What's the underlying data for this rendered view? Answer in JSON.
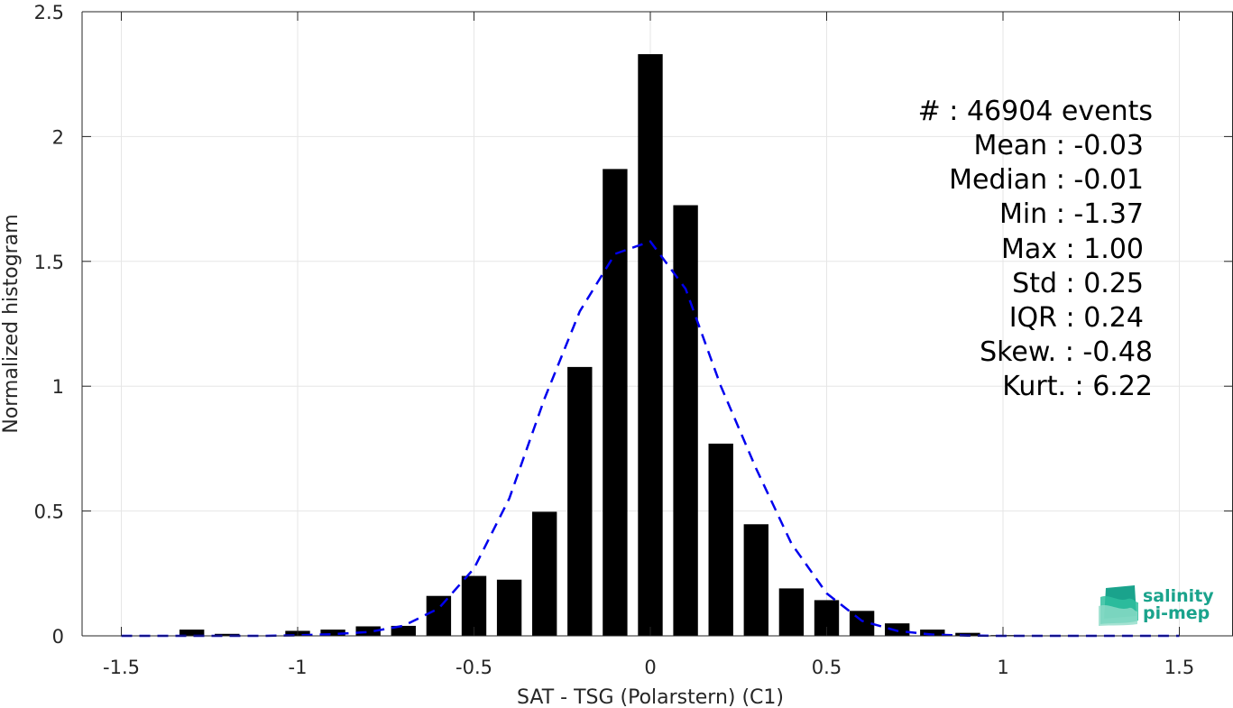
{
  "chart_data": {
    "type": "bar",
    "xlabel": "SAT - TSG (Polarstern) (C1)",
    "ylabel": "Normalized histogram",
    "xlim": [
      -1.6,
      1.6
    ],
    "ylim": [
      0,
      2.5
    ],
    "grid": true,
    "x_ticks": [
      -1.5,
      -1,
      -0.5,
      0,
      0.5,
      1,
      1.5
    ],
    "x_tick_labels": [
      "-1.5",
      "-1",
      "-0.5",
      "0",
      "0.5",
      "1",
      "1.5"
    ],
    "y_ticks": [
      0,
      0.5,
      1,
      1.5,
      2,
      2.5
    ],
    "y_tick_labels": [
      "0",
      "0.5",
      "1",
      "1.5",
      "2",
      "2.5"
    ],
    "bar_color": "#000000",
    "bar_width": 0.07,
    "bars": {
      "x": [
        -1.4,
        -1.3,
        -1.2,
        -1.1,
        -1.0,
        -0.9,
        -0.8,
        -0.7,
        -0.6,
        -0.5,
        -0.4,
        -0.3,
        -0.2,
        -0.1,
        0.0,
        0.1,
        0.2,
        0.3,
        0.4,
        0.5,
        0.6,
        0.7,
        0.8,
        0.9,
        1.0
      ],
      "values": [
        0.0,
        0.025,
        0.008,
        0.0,
        0.02,
        0.025,
        0.038,
        0.04,
        0.16,
        0.24,
        0.225,
        0.497,
        1.077,
        1.87,
        2.33,
        1.725,
        0.77,
        0.447,
        0.19,
        0.143,
        0.1,
        0.05,
        0.025,
        0.012,
        0.003
      ]
    },
    "fit_curve": {
      "name": "",
      "color": "#0000ee",
      "style": "dashed",
      "x": [
        -1.5,
        -1.4,
        -1.3,
        -1.2,
        -1.1,
        -1.0,
        -0.9,
        -0.8,
        -0.7,
        -0.6,
        -0.5,
        -0.4,
        -0.3,
        -0.2,
        -0.1,
        0.0,
        0.1,
        0.2,
        0.3,
        0.4,
        0.5,
        0.6,
        0.7,
        0.8,
        0.9,
        1.0,
        1.1,
        1.2,
        1.3,
        1.4,
        1.5
      ],
      "y": [
        0.0,
        0.0,
        0.0,
        0.0,
        0.0,
        0.002,
        0.007,
        0.015,
        0.04,
        0.11,
        0.27,
        0.55,
        0.95,
        1.3,
        1.53,
        1.58,
        1.39,
        1.0,
        0.67,
        0.37,
        0.17,
        0.06,
        0.02,
        0.005,
        0.001,
        0.0,
        0.0,
        0.0,
        0.0,
        0.0,
        0.0
      ]
    },
    "stats": {
      "events": "#  : 46904 events",
      "mean": "Mean : -0.03",
      "median": "Median : -0.01",
      "min": "Min : -1.37",
      "max": "Max : 1.00",
      "std": "Std : 0.25",
      "iqr": "IQR : 0.24",
      "skew": "Skew. : -0.48",
      "kurt": "Kurt. : 6.22"
    }
  },
  "logo": {
    "line1": "salinity",
    "line2": "pi-mep",
    "color": "#1aa38c"
  }
}
